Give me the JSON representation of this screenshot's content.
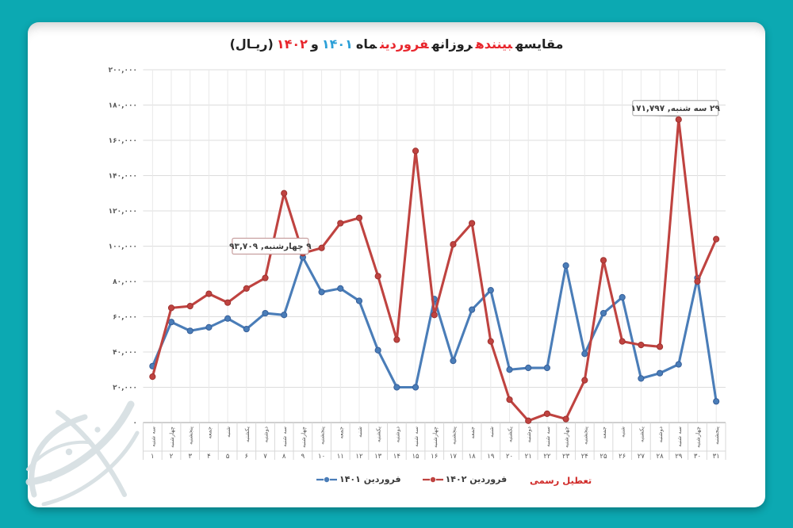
{
  "background_color": "#0ca9b2",
  "title": {
    "full": "مقایسه بیننده روزانه فروردین ماه ۱۴۰۱ و ۱۴۰۲ (ریـال)",
    "parts": [
      {
        "text": "مقایسه",
        "color": "#222222"
      },
      {
        "text": "بیننده",
        "color": "#e8262d"
      },
      {
        "text": "روزانه",
        "color": "#222222"
      },
      {
        "text": "فروردین",
        "color": "#e8262d"
      },
      {
        "text": "ماه",
        "color": "#222222"
      },
      {
        "text": "۱۴۰۱",
        "color": "#2da0d8"
      },
      {
        "text": "و",
        "color": "#222222"
      },
      {
        "text": "۱۴۰۲",
        "color": "#e8262d"
      },
      {
        "text": "(ریـال)",
        "color": "#222222"
      }
    ]
  },
  "legend": {
    "items": [
      {
        "label": "فروردین ۱۴۰۱",
        "color": "#4a7db8"
      },
      {
        "label": "فروردین ۱۴۰۲",
        "color": "#bf4340"
      }
    ],
    "holiday_note": {
      "label": "تعطیل رسمی",
      "color": "#d02a28"
    }
  },
  "chart_data": {
    "type": "line",
    "title": "مقایسه بیننده روزانه فروردین ماه ۱۴۰۱ و ۱۴۰۲ (ریـال)",
    "ylim": [
      0,
      200000
    ],
    "grid": true,
    "legend_position": "bottom",
    "y_ticks": {
      "values": [
        200000,
        180000,
        160000,
        140000,
        120000,
        100000,
        80000,
        60000,
        40000,
        20000,
        0
      ],
      "labels": [
        "۲۰۰,۰۰۰",
        "۱۸۰,۰۰۰",
        "۱۶۰,۰۰۰",
        "۱۴۰,۰۰۰",
        "۱۲۰,۰۰۰",
        "۱۰۰,۰۰۰",
        "۸۰,۰۰۰",
        "۶۰,۰۰۰",
        "۴۰,۰۰۰",
        "۲۰,۰۰۰",
        "۰"
      ]
    },
    "x_weekdays": [
      "سه شنبه",
      "چهارشنبه",
      "پنجشنبه",
      "جمعه",
      "شنبه",
      "یکشنبه",
      "دوشنبه",
      "سه شنبه",
      "چهارشنبه",
      "پنجشنبه",
      "جمعه",
      "شنبه",
      "یکشنبه",
      "دوشنبه",
      "سه شنبه",
      "چهارشنبه",
      "پنجشنبه",
      "جمعه",
      "شنبه",
      "یکشنبه",
      "دوشنبه",
      "سه شنبه",
      "چهارشنبه",
      "پنجشنبه",
      "جمعه",
      "شنبه",
      "یکشنبه",
      "دوشنبه",
      "سه شنبه",
      "چهارشنبه",
      "پنجشنبه"
    ],
    "x_day_labels": [
      "۱",
      "۲",
      "۳",
      "۴",
      "۵",
      "۶",
      "۷",
      "۸",
      "۹",
      "۱۰",
      "۱۱",
      "۱۲",
      "۱۳",
      "۱۴",
      "۱۵",
      "۱۶",
      "۱۷",
      "۱۸",
      "۱۹",
      "۲۰",
      "۲۱",
      "۲۲",
      "۲۳",
      "۲۴",
      "۲۵",
      "۲۶",
      "۲۷",
      "۲۸",
      "۲۹",
      "۳۰",
      "۳۱"
    ],
    "series": [
      {
        "name": "فروردین ۱۴۰۱",
        "color": "#4a7db8",
        "marker_color": "#38609a",
        "values": [
          32000,
          57000,
          52000,
          54000,
          59000,
          53000,
          62000,
          61000,
          93709,
          74000,
          76000,
          69000,
          41000,
          20000,
          20000,
          70000,
          35000,
          64000,
          75000,
          30000,
          31000,
          31000,
          89000,
          39000,
          62000,
          71000,
          25000,
          28000,
          33000,
          82000,
          12000
        ]
      },
      {
        "name": "فروردین ۱۴۰۲",
        "color": "#bf4340",
        "marker_color": "#9e322f",
        "values": [
          26000,
          65000,
          66000,
          73000,
          68000,
          76000,
          82000,
          130000,
          96000,
          99000,
          113000,
          116000,
          83000,
          47000,
          154000,
          61000,
          101000,
          113000,
          46000,
          13000,
          1000,
          5000,
          2000,
          24000,
          92000,
          46000,
          44000,
          43000,
          171797,
          80000,
          104000
        ]
      }
    ],
    "annotations": [
      {
        "day": 9,
        "series": "فروردین ۱۴۰۱",
        "value": 93709,
        "text": "۹ چهارشنبه, ۹۳,۷۰۹",
        "border_color": "#c79f9f"
      },
      {
        "day": 29,
        "series": "فروردین ۱۴۰۲",
        "value": 171797,
        "text": "۲۹ سه شنبه, ۱۷۱,۷۹۷",
        "border_color": "#b5b5b5"
      }
    ]
  },
  "watermark": {
    "name": "calligraphy-logo"
  }
}
